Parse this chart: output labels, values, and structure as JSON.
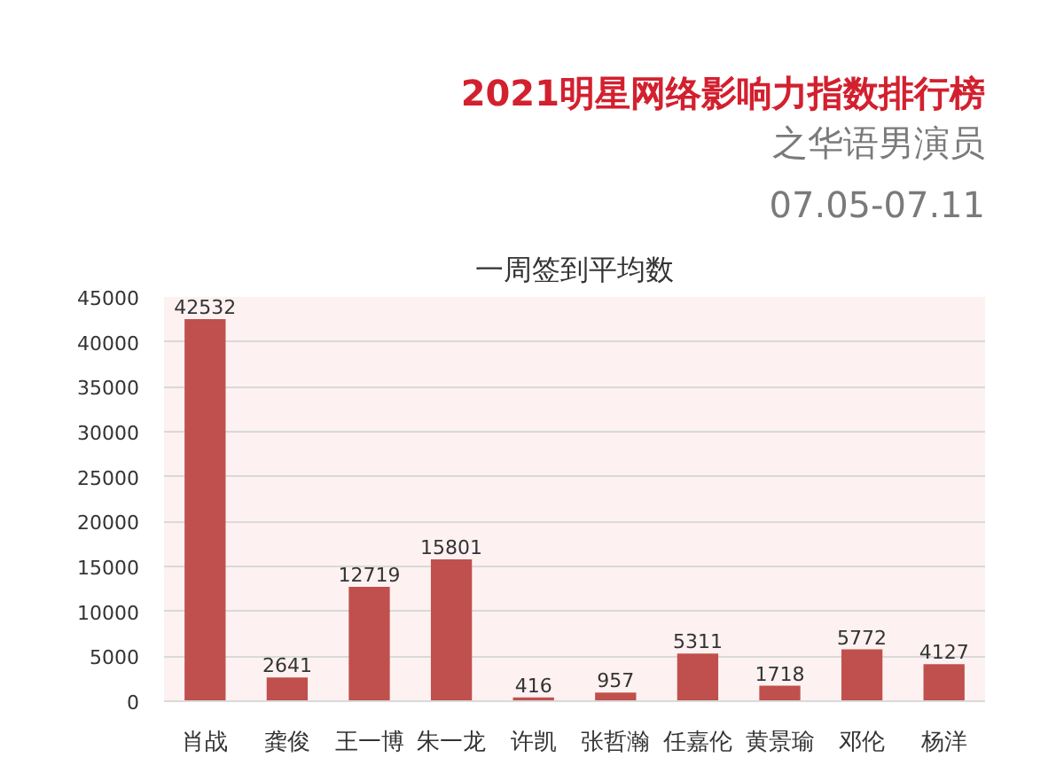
{
  "chart_data": {
    "type": "bar",
    "title": "2021明星网络影响力指数排行榜",
    "subtitle": "之华语男演员",
    "annotations": [
      "07.05-07.11",
      "一周签到平均数"
    ],
    "categories": [
      "肖战",
      "龚俊",
      "王一博",
      "朱一龙",
      "许凯",
      "张哲瀚",
      "任嘉伦",
      "黄景瑜",
      "邓伦",
      "杨洋"
    ],
    "values": [
      42532,
      2641,
      12719,
      15801,
      416,
      957,
      5311,
      1718,
      5772,
      4127
    ],
    "color": "#c0504d",
    "ylim": [
      0,
      45000
    ],
    "yticks": [
      0,
      5000,
      10000,
      15000,
      20000,
      25000,
      30000,
      35000,
      40000,
      45000
    ],
    "grid": "y",
    "data_labels": true
  }
}
